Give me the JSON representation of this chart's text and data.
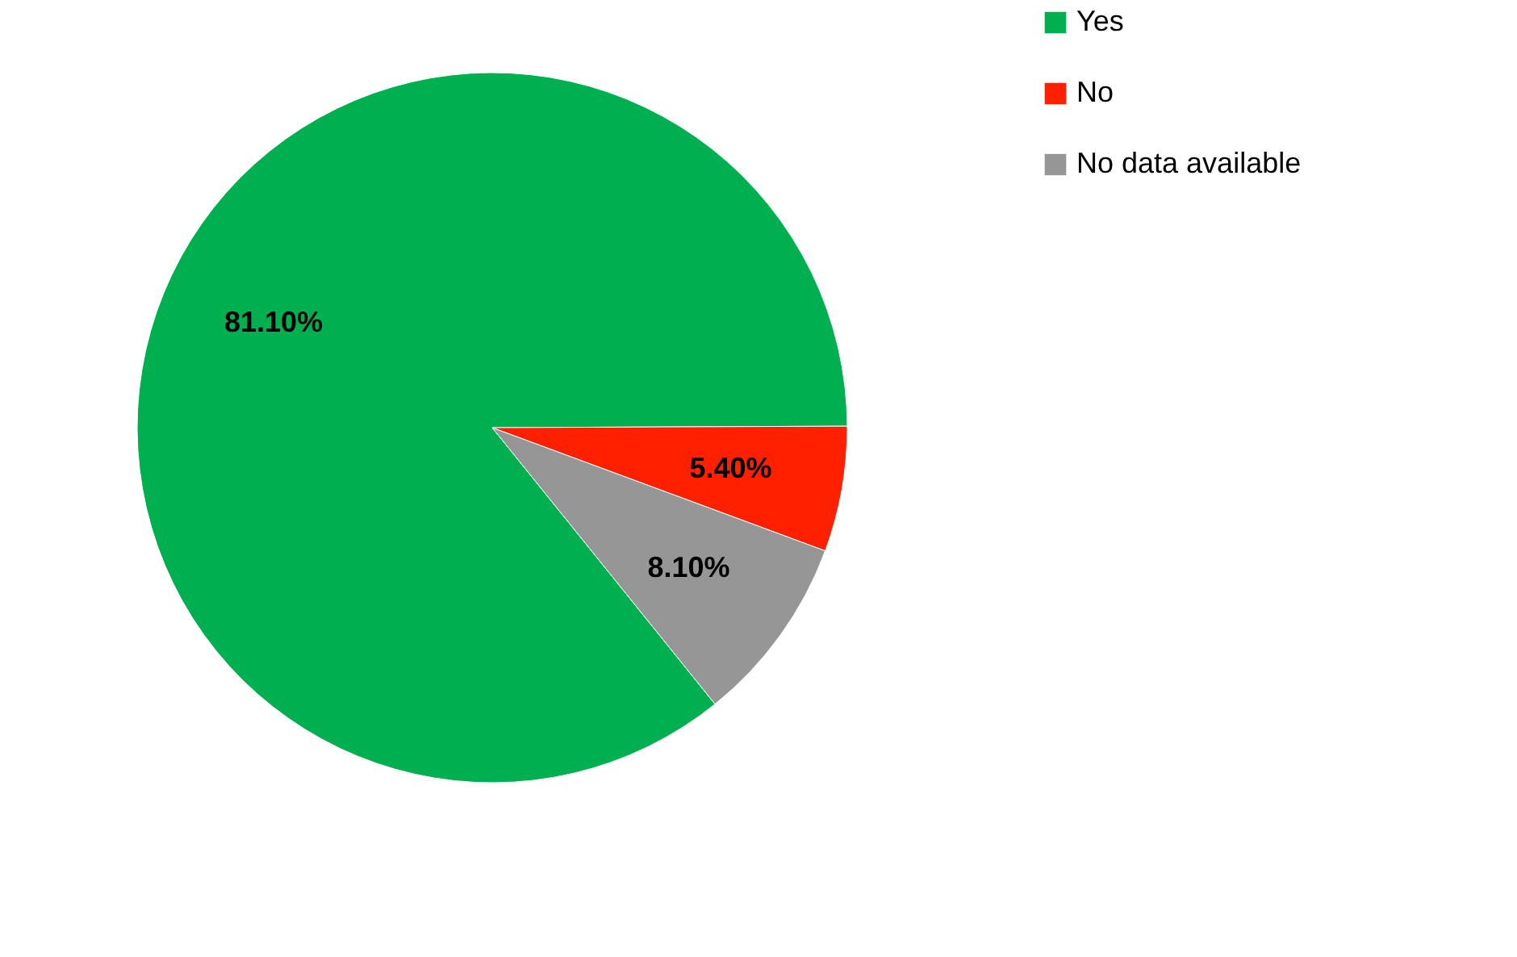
{
  "chart_data": {
    "type": "pie",
    "categories": [
      "Yes",
      "No",
      "No data available"
    ],
    "values": [
      81.1,
      5.4,
      8.1
    ],
    "colors": [
      "#00b050",
      "#ff2000",
      "#969696"
    ],
    "value_labels": [
      "81.10%",
      "5.40%",
      "8.10%"
    ],
    "legend": "right"
  }
}
